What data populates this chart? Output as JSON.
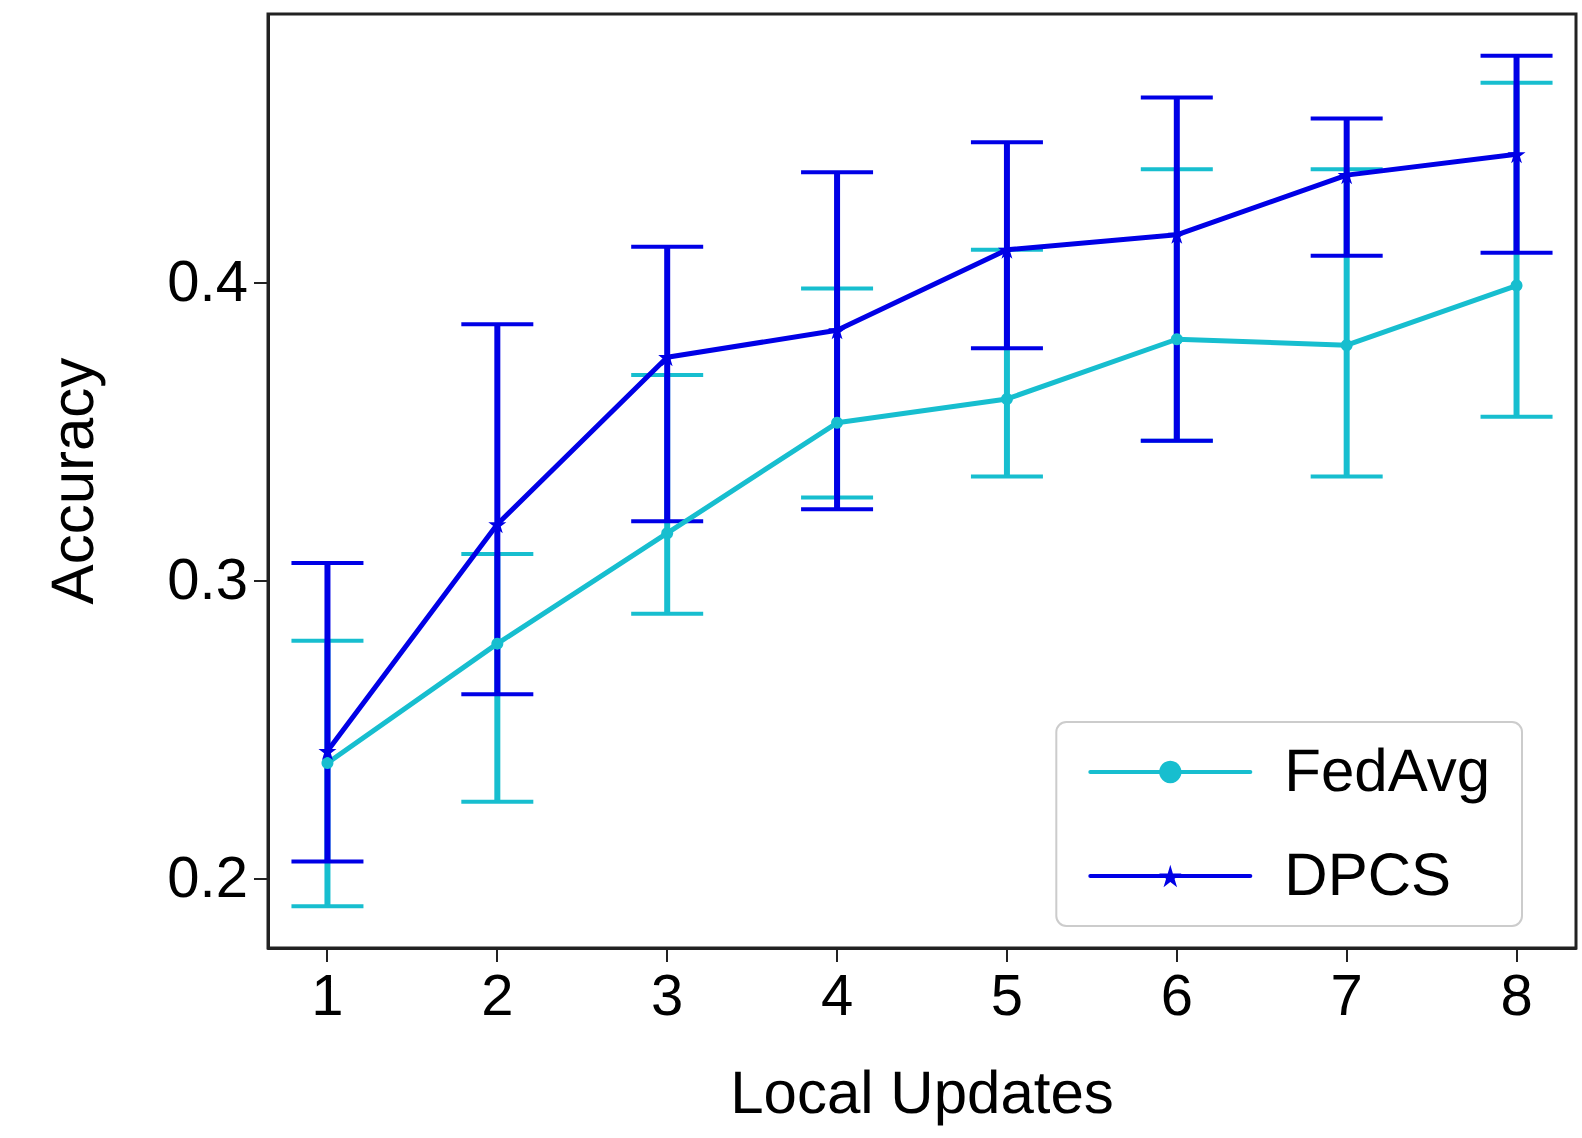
{
  "chart_data": {
    "type": "line",
    "xlabel": "Local Updates",
    "ylabel": "Accuracy",
    "x": [
      1,
      2,
      3,
      4,
      5,
      6,
      7,
      8
    ],
    "xlim": [
      0.65,
      8.35
    ],
    "xticks": [
      1,
      2,
      3,
      4,
      5,
      6,
      7,
      8
    ],
    "ylim": [
      0.177,
      0.49
    ],
    "yticks": [
      0.2,
      0.3,
      0.4
    ],
    "grid": false,
    "legend": "bottom right",
    "line_style": "solid",
    "series": [
      {
        "name": "FedAvg",
        "color": "#17becf",
        "marker": "circle",
        "values": [
          0.239,
          0.279,
          0.316,
          0.353,
          0.361,
          0.381,
          0.379,
          0.399
        ],
        "errors": [
          [
            0.191,
            0.28
          ],
          [
            0.226,
            0.309
          ],
          [
            0.289,
            0.369
          ],
          [
            0.328,
            0.398
          ],
          [
            0.335,
            0.411
          ],
          [
            0.347,
            0.438
          ],
          [
            0.335,
            0.438
          ],
          [
            0.355,
            0.467
          ]
        ]
      },
      {
        "name": "DPCS",
        "color": "#0000e6",
        "marker": "star",
        "values": [
          0.243,
          0.319,
          0.375,
          0.384,
          0.411,
          0.416,
          0.436,
          0.443
        ],
        "errors": [
          [
            0.206,
            0.306
          ],
          [
            0.262,
            0.386
          ],
          [
            0.32,
            0.412
          ],
          [
            0.324,
            0.437
          ],
          [
            0.378,
            0.447
          ],
          [
            0.347,
            0.462
          ],
          [
            0.409,
            0.455
          ],
          [
            0.41,
            0.476
          ]
        ]
      }
    ]
  }
}
